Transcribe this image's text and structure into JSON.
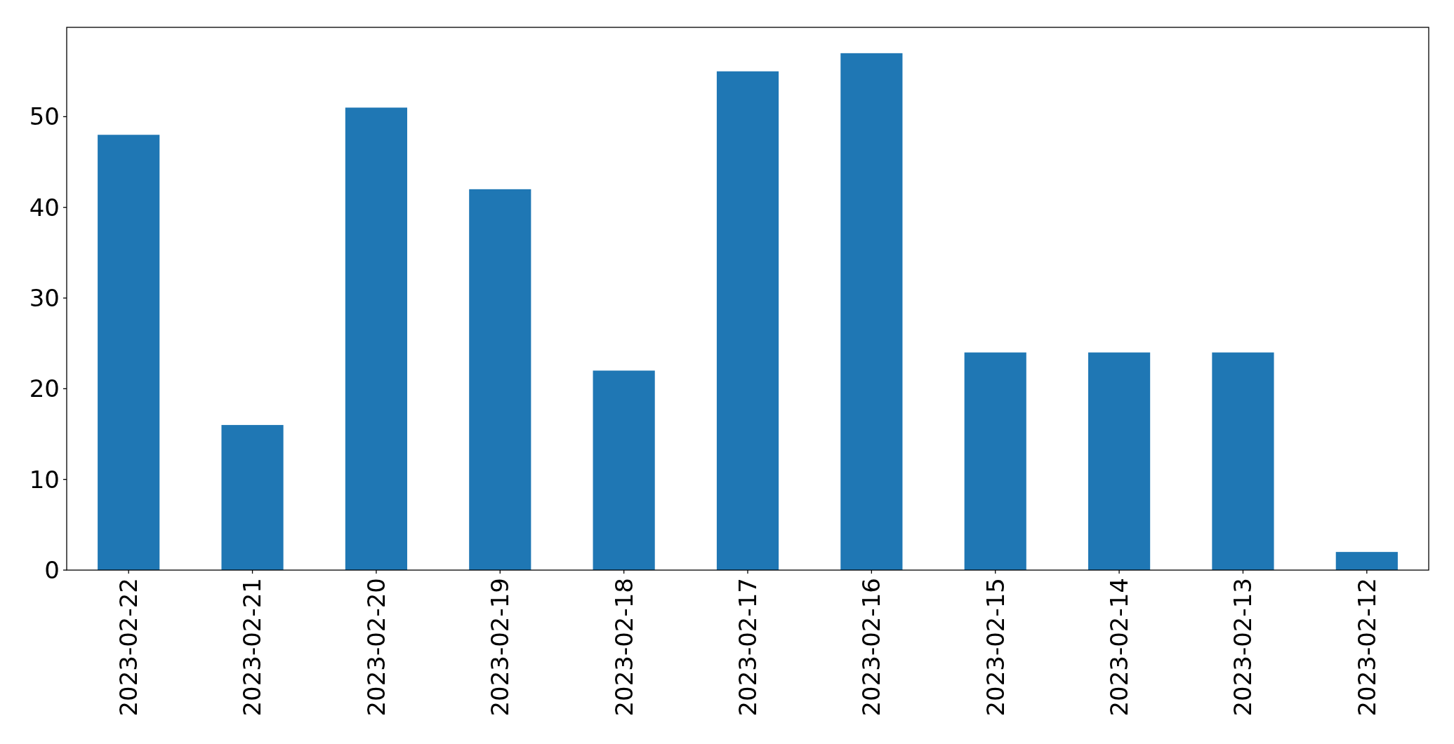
{
  "chart_data": {
    "type": "bar",
    "categories": [
      "2023-02-22",
      "2023-02-21",
      "2023-02-20",
      "2023-02-19",
      "2023-02-18",
      "2023-02-17",
      "2023-02-16",
      "2023-02-15",
      "2023-02-14",
      "2023-02-13",
      "2023-02-12"
    ],
    "values": [
      48,
      16,
      51,
      42,
      22,
      55,
      57,
      24,
      24,
      24,
      2
    ],
    "color": "#1f77b4",
    "ylim": [
      0,
      59.85
    ],
    "yticks": [
      0,
      10,
      20,
      30,
      40,
      50
    ],
    "grid": false
  }
}
